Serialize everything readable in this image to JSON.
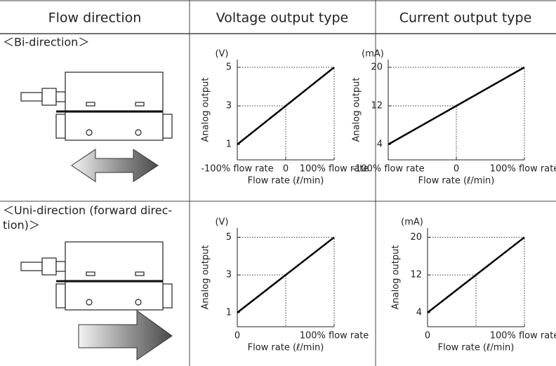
{
  "table": {
    "header": [
      "Flow direction",
      "Voltage output type",
      "Current output type"
    ],
    "rows": [
      {
        "label": [
          "＜Bi-direction＞"
        ],
        "charts": [
          {
            "type": "line",
            "y_unit": "(V)",
            "ylabel": "Analog output",
            "xlabel": "Flow rate (ℓ/min)",
            "x": [
              -100,
              0,
              100
            ],
            "values": [
              1,
              3,
              5
            ],
            "xlim": [
              -100,
              100
            ],
            "ylim": [
              0.2,
              5.4
            ],
            "xticks": [
              {
                "value": -100,
                "label": "-100% flow rate"
              },
              0,
              {
                "value": 100,
                "label": "100% flow rate"
              }
            ],
            "yticks": [
              1,
              3,
              5
            ],
            "color": "#000000"
          },
          {
            "type": "line",
            "y_unit": "(mA)",
            "ylabel": "Analog output",
            "xlabel": "Flow rate (ℓ/min)",
            "x": [
              -100,
              0,
              100
            ],
            "values": [
              4,
              12,
              20
            ],
            "xlim": [
              -100,
              100
            ],
            "ylim": [
              0.8,
              21.6
            ],
            "xticks": [
              {
                "value": -100,
                "label": "-100% flow rate"
              },
              0,
              {
                "value": 100,
                "label": "100% flow rate"
              }
            ],
            "yticks": [
              4,
              12,
              20
            ],
            "color": "#000000"
          }
        ]
      },
      {
        "label": [
          "＜Uni-direction (forward direc-",
          "tion)＞"
        ],
        "charts": [
          {
            "type": "line",
            "y_unit": "(V)",
            "ylabel": "Analog output",
            "xlabel": "Flow rate (ℓ/min)",
            "x": [
              0,
              50,
              100
            ],
            "values": [
              1,
              3,
              5
            ],
            "xlim": [
              0,
              100
            ],
            "ylim": [
              0.25,
              5.5
            ],
            "xticks": [
              0,
              {
                "value": 100,
                "label": "100% flow rate"
              }
            ],
            "yticks": [
              1,
              3,
              5
            ],
            "color": "#000000"
          },
          {
            "type": "line",
            "y_unit": "(mA)",
            "ylabel": "Analog output",
            "xlabel": "Flow rate (ℓ/min)",
            "x": [
              0,
              50,
              100
            ],
            "values": [
              4,
              12,
              20
            ],
            "xlim": [
              0,
              100
            ],
            "ylim": [
              1,
              22
            ],
            "xticks": [
              0,
              {
                "value": 100,
                "label": "100% flow rate"
              }
            ],
            "yticks": [
              4,
              12,
              20
            ],
            "color": "#000000"
          }
        ]
      }
    ]
  }
}
